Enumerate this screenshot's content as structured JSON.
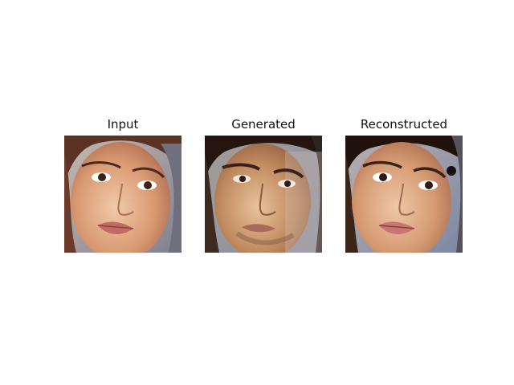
{
  "figure": {
    "panels": [
      {
        "title": "Input",
        "image": "face-photo-female"
      },
      {
        "title": "Generated",
        "image": "face-photo-male-generated"
      },
      {
        "title": "Reconstructed",
        "image": "face-photo-female-reconstructed"
      }
    ]
  }
}
